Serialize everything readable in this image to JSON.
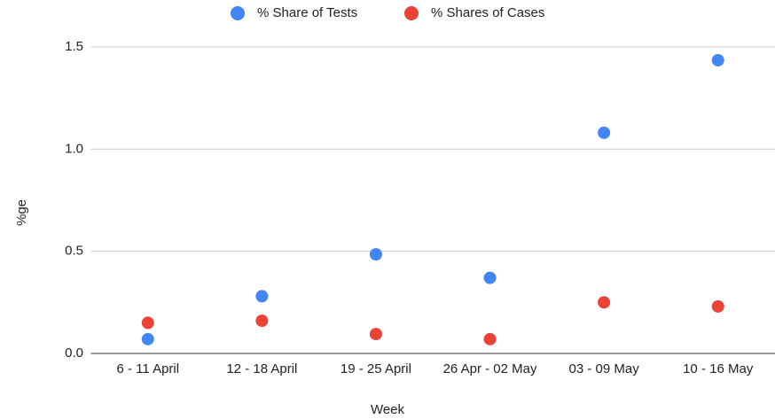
{
  "chart_data": {
    "type": "scatter",
    "categories": [
      "6 - 11 April",
      "12 - 18 April",
      "19 - 25 April",
      "26 Apr - 02 May",
      "03 - 09 May",
      "10 - 16 May"
    ],
    "series": [
      {
        "name": "% Share of Tests",
        "color": "#4285f4",
        "values": [
          0.07,
          0.28,
          0.485,
          0.37,
          1.08,
          1.435
        ]
      },
      {
        "name": "% Shares of Cases",
        "color": "#ea4335",
        "values": [
          0.15,
          0.16,
          0.095,
          0.07,
          0.25,
          0.23
        ]
      }
    ],
    "xlabel": "Week",
    "ylabel": "%ge",
    "ylim": [
      0,
      1.5
    ],
    "yticks": [
      {
        "value": 0,
        "label": "0.0"
      },
      0.5,
      {
        "value": 1,
        "label": "1.0"
      },
      1.5
    ],
    "grid": true,
    "legend": "top"
  }
}
